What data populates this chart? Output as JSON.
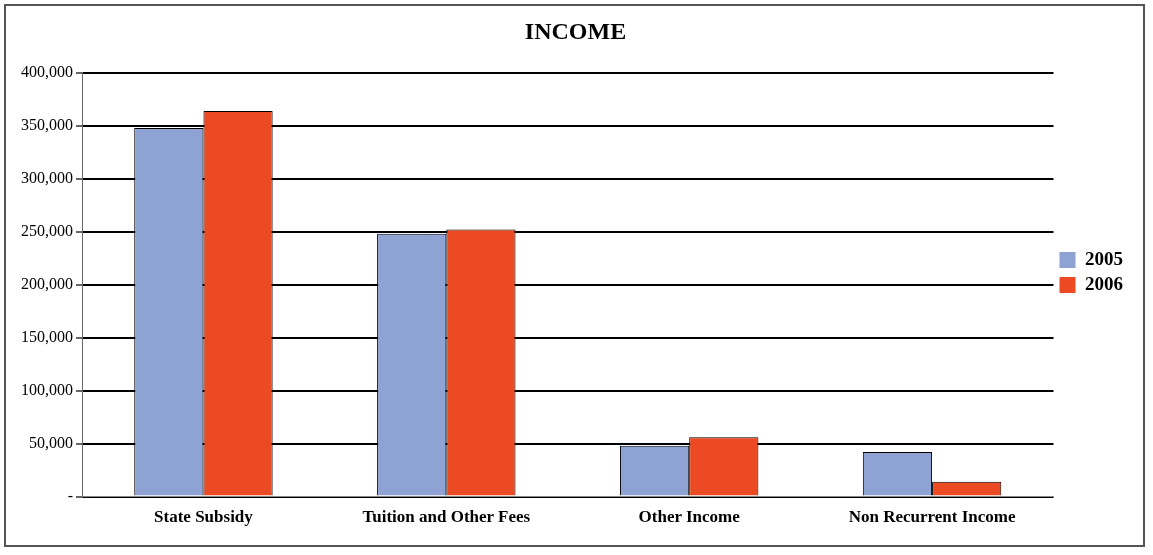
{
  "chart_data": {
    "type": "bar",
    "title": "INCOME",
    "categories": [
      "State Subsidy",
      "Tuition and Other Fees",
      "Other Income",
      "Non Recurrent Income"
    ],
    "series": [
      {
        "name": "2005",
        "color": "#8fa2d4",
        "values": [
          348000,
          248000,
          48000,
          42000
        ]
      },
      {
        "name": "2006",
        "color": "#ec4a22",
        "values": [
          364000,
          252000,
          56000,
          14000
        ]
      }
    ],
    "ylim": [
      0,
      400000
    ],
    "yticks": [
      {
        "value": 0,
        "label": "-"
      },
      {
        "value": 50000,
        "label": "50,000"
      },
      {
        "value": 100000,
        "label": "100,000"
      },
      {
        "value": 150000,
        "label": "150,000"
      },
      {
        "value": 200000,
        "label": "200,000"
      },
      {
        "value": 250000,
        "label": "250,000"
      },
      {
        "value": 300000,
        "label": "300,000"
      },
      {
        "value": 350000,
        "label": "350,000"
      },
      {
        "value": 400000,
        "label": "400,000"
      }
    ],
    "grid": "y",
    "legend": "right"
  }
}
